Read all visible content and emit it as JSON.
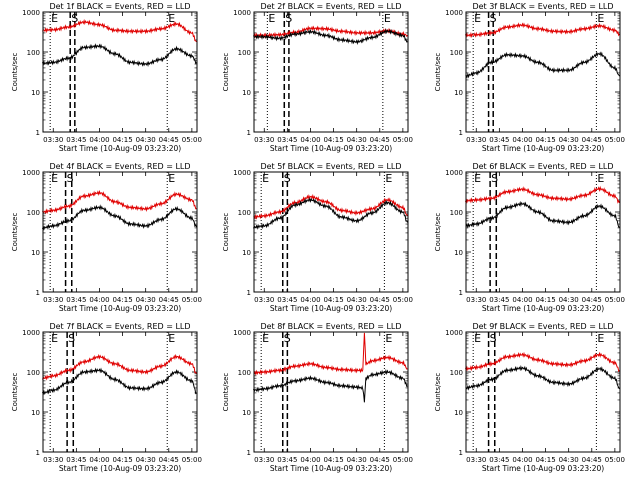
{
  "colors": {
    "events": "#000000",
    "lld": "#e00000",
    "axes": "#000000"
  },
  "shared": {
    "xlabel": "Start Time (10-Aug-09 03:23:20)",
    "ylabel": "Counts/sec",
    "x_ticks": [
      "03:30",
      "03:45",
      "04:00",
      "04:15",
      "04:30",
      "04:45",
      "05:00"
    ],
    "y_ticks": [
      "1",
      "10",
      "100",
      "1000"
    ]
  },
  "chart_data": [
    {
      "type": "line",
      "title": "Det 1f BLACK = Events, RED = LLD",
      "xlabel": "Start Time (10-Aug-09 03:23:20)",
      "ylabel": "Counts/sec",
      "xlim": [
        "03:23:20",
        "05:03:20"
      ],
      "ylim": [
        1,
        1000
      ],
      "yscale": "log",
      "markers": [
        {
          "label": "E",
          "time": "03:28",
          "style": "dotted"
        },
        {
          "label": "S",
          "time": "03:41",
          "style": "dashed"
        },
        {
          "label": "",
          "time": "03:44",
          "style": "dashed"
        },
        {
          "label": "E",
          "time": "04:44",
          "style": "dotted"
        }
      ],
      "series": [
        {
          "name": "LLD",
          "color": "#e00000",
          "x": [
            "03:23",
            "03:30",
            "03:40",
            "03:50",
            "04:00",
            "04:10",
            "04:20",
            "04:30",
            "04:40",
            "04:50",
            "05:00",
            "05:03"
          ],
          "y": [
            350,
            360,
            420,
            560,
            480,
            350,
            330,
            330,
            380,
            500,
            300,
            180
          ]
        },
        {
          "name": "Events",
          "color": "#000000",
          "x": [
            "03:23",
            "03:30",
            "03:40",
            "03:50",
            "04:00",
            "04:10",
            "04:20",
            "04:30",
            "04:40",
            "04:50",
            "05:00",
            "05:03"
          ],
          "y": [
            52,
            55,
            70,
            130,
            140,
            90,
            55,
            50,
            65,
            120,
            80,
            55
          ]
        }
      ]
    },
    {
      "type": "line",
      "title": "Det 2f BLACK = Events, RED = LLD",
      "xlabel": "Start Time (10-Aug-09 03:23:20)",
      "ylabel": "Counts/sec",
      "xlim": [
        "03:23:20",
        "05:03:20"
      ],
      "ylim": [
        1,
        1000
      ],
      "yscale": "log",
      "markers": [
        {
          "label": "E",
          "time": "03:32",
          "style": "dotted"
        },
        {
          "label": "S",
          "time": "03:43",
          "style": "dashed"
        },
        {
          "label": "",
          "time": "03:46",
          "style": "dashed"
        },
        {
          "label": "E",
          "time": "04:47",
          "style": "dotted"
        }
      ],
      "series": [
        {
          "name": "LLD",
          "color": "#e00000",
          "x": [
            "03:23",
            "03:30",
            "03:40",
            "03:50",
            "04:00",
            "04:10",
            "04:20",
            "04:30",
            "04:40",
            "04:50",
            "05:00",
            "05:03"
          ],
          "y": [
            260,
            260,
            270,
            310,
            390,
            380,
            330,
            300,
            300,
            340,
            280,
            260
          ]
        },
        {
          "name": "Events",
          "color": "#000000",
          "x": [
            "03:23",
            "03:30",
            "03:40",
            "03:50",
            "04:00",
            "04:10",
            "04:20",
            "04:30",
            "04:40",
            "04:50",
            "05:00",
            "05:03"
          ],
          "y": [
            240,
            240,
            220,
            280,
            320,
            260,
            200,
            180,
            230,
            330,
            260,
            180
          ]
        }
      ]
    },
    {
      "type": "line",
      "title": "Det 3f BLACK = Events, RED = LLD",
      "xlabel": "Start Time (10-Aug-09 03:23:20)",
      "ylabel": "Counts/sec",
      "xlim": [
        "03:23:20",
        "05:03:20"
      ],
      "ylim": [
        1,
        1000
      ],
      "yscale": "log",
      "markers": [
        {
          "label": "E",
          "time": "03:28",
          "style": "dotted"
        },
        {
          "label": "S",
          "time": "03:38",
          "style": "dashed"
        },
        {
          "label": "",
          "time": "03:41",
          "style": "dashed"
        },
        {
          "label": "E",
          "time": "04:48",
          "style": "dotted"
        }
      ],
      "series": [
        {
          "name": "LLD",
          "color": "#e00000",
          "x": [
            "03:23",
            "03:30",
            "03:40",
            "03:50",
            "04:00",
            "04:10",
            "04:20",
            "04:30",
            "04:40",
            "04:50",
            "05:00",
            "05:03"
          ],
          "y": [
            260,
            270,
            300,
            420,
            470,
            380,
            330,
            320,
            380,
            450,
            350,
            280
          ]
        },
        {
          "name": "Events",
          "color": "#000000",
          "x": [
            "03:23",
            "03:30",
            "03:40",
            "03:50",
            "04:00",
            "04:10",
            "04:20",
            "04:30",
            "04:40",
            "04:50",
            "05:00",
            "05:03"
          ],
          "y": [
            25,
            30,
            55,
            85,
            80,
            55,
            35,
            35,
            55,
            90,
            40,
            25
          ]
        }
      ]
    },
    {
      "type": "line",
      "title": "Det 4f BLACK = Events, RED = LLD",
      "xlabel": "Start Time (10-Aug-09 03:23:20)",
      "ylabel": "Counts/sec",
      "xlim": [
        "03:23:20",
        "05:03:20"
      ],
      "ylim": [
        1,
        1000
      ],
      "yscale": "log",
      "markers": [
        {
          "label": "E",
          "time": "03:28",
          "style": "dotted"
        },
        {
          "label": "S",
          "time": "03:38",
          "style": "dashed"
        },
        {
          "label": "",
          "time": "03:42",
          "style": "dashed"
        },
        {
          "label": "E",
          "time": "04:44",
          "style": "dotted"
        }
      ],
      "series": [
        {
          "name": "LLD",
          "color": "#e00000",
          "x": [
            "03:23",
            "03:30",
            "03:40",
            "03:50",
            "04:00",
            "04:10",
            "04:20",
            "04:30",
            "04:40",
            "04:50",
            "05:00",
            "05:03"
          ],
          "y": [
            100,
            110,
            140,
            250,
            300,
            180,
            130,
            120,
            160,
            280,
            200,
            120
          ]
        },
        {
          "name": "Events",
          "color": "#000000",
          "x": [
            "03:23",
            "03:30",
            "03:40",
            "03:50",
            "04:00",
            "04:10",
            "04:20",
            "04:30",
            "04:40",
            "04:50",
            "05:00",
            "05:03"
          ],
          "y": [
            40,
            45,
            60,
            110,
            130,
            80,
            50,
            45,
            65,
            120,
            70,
            42
          ]
        }
      ]
    },
    {
      "type": "line",
      "title": "Det 5f BLACK = Events, RED = LLD",
      "xlabel": "Start Time (10-Aug-09 03:23:20)",
      "ylabel": "Counts/sec",
      "xlim": [
        "03:23:20",
        "05:03:20"
      ],
      "ylim": [
        1,
        1000
      ],
      "yscale": "log",
      "markers": [
        {
          "label": "E",
          "time": "03:28",
          "style": "dotted"
        },
        {
          "label": "S",
          "time": "03:42",
          "style": "dashed"
        },
        {
          "label": "",
          "time": "03:45",
          "style": "dashed"
        },
        {
          "label": "E",
          "time": "04:48",
          "style": "dotted"
        }
      ],
      "series": [
        {
          "name": "LLD",
          "color": "#e00000",
          "x": [
            "03:23",
            "03:30",
            "03:40",
            "03:50",
            "04:00",
            "04:10",
            "04:20",
            "04:30",
            "04:40",
            "04:50",
            "05:00",
            "05:03"
          ],
          "y": [
            75,
            80,
            100,
            170,
            240,
            180,
            110,
            95,
            120,
            200,
            130,
            80
          ]
        },
        {
          "name": "Events",
          "color": "#000000",
          "x": [
            "03:23",
            "03:30",
            "03:40",
            "03:50",
            "04:00",
            "04:10",
            "04:20",
            "04:30",
            "04:40",
            "04:50",
            "05:00",
            "05:03"
          ],
          "y": [
            42,
            45,
            70,
            150,
            200,
            140,
            75,
            60,
            95,
            170,
            100,
            55
          ]
        }
      ]
    },
    {
      "type": "line",
      "title": "Det 6f BLACK = Events, RED = LLD",
      "xlabel": "Start Time (10-Aug-09 03:23:20)",
      "ylabel": "Counts/sec",
      "xlim": [
        "03:23:20",
        "05:03:20"
      ],
      "ylim": [
        1,
        1000
      ],
      "yscale": "log",
      "markers": [
        {
          "label": "E",
          "time": "03:28",
          "style": "dotted"
        },
        {
          "label": "S",
          "time": "03:39",
          "style": "dashed"
        },
        {
          "label": "",
          "time": "03:43",
          "style": "dashed"
        },
        {
          "label": "E",
          "time": "04:48",
          "style": "dotted"
        }
      ],
      "series": [
        {
          "name": "LLD",
          "color": "#e00000",
          "x": [
            "03:23",
            "03:30",
            "03:40",
            "03:50",
            "04:00",
            "04:10",
            "04:20",
            "04:30",
            "04:40",
            "04:50",
            "05:00",
            "05:03"
          ],
          "y": [
            190,
            200,
            220,
            320,
            370,
            270,
            220,
            210,
            260,
            380,
            250,
            170
          ]
        },
        {
          "name": "Events",
          "color": "#000000",
          "x": [
            "03:23",
            "03:30",
            "03:40",
            "03:50",
            "04:00",
            "04:10",
            "04:20",
            "04:30",
            "04:40",
            "04:50",
            "05:00",
            "05:03"
          ],
          "y": [
            45,
            50,
            70,
            130,
            160,
            100,
            60,
            55,
            80,
            140,
            80,
            42
          ]
        }
      ]
    },
    {
      "type": "line",
      "title": "Det 7f BLACK = Events, RED = LLD",
      "xlabel": "Start Time (10-Aug-09 03:23:20)",
      "ylabel": "Counts/sec",
      "xlim": [
        "03:23:20",
        "05:03:20"
      ],
      "ylim": [
        1,
        1000
      ],
      "yscale": "log",
      "markers": [
        {
          "label": "E",
          "time": "03:28",
          "style": "dotted"
        },
        {
          "label": "S",
          "time": "03:39",
          "style": "dashed"
        },
        {
          "label": "",
          "time": "03:43",
          "style": "dashed"
        },
        {
          "label": "E",
          "time": "04:44",
          "style": "dotted"
        }
      ],
      "series": [
        {
          "name": "LLD",
          "color": "#e00000",
          "x": [
            "03:23",
            "03:30",
            "03:40",
            "03:50",
            "04:00",
            "04:10",
            "04:20",
            "04:30",
            "04:40",
            "04:50",
            "05:00",
            "05:03"
          ],
          "y": [
            70,
            80,
            110,
            180,
            240,
            160,
            110,
            100,
            140,
            240,
            160,
            90
          ]
        },
        {
          "name": "Events",
          "color": "#000000",
          "x": [
            "03:23",
            "03:30",
            "03:40",
            "03:50",
            "04:00",
            "04:10",
            "04:20",
            "04:30",
            "04:40",
            "04:50",
            "05:00",
            "05:03"
          ],
          "y": [
            30,
            35,
            55,
            100,
            110,
            65,
            40,
            38,
            55,
            100,
            60,
            30
          ]
        }
      ]
    },
    {
      "type": "line",
      "title": "Det 8f BLACK = Events, RED = LLD",
      "xlabel": "Start Time (10-Aug-09 03:23:20)",
      "ylabel": "Counts/sec",
      "xlim": [
        "03:23:20",
        "05:03:20"
      ],
      "ylim": [
        1,
        1000
      ],
      "yscale": "log",
      "markers": [
        {
          "label": "E",
          "time": "03:28",
          "style": "dotted"
        },
        {
          "label": "S",
          "time": "03:42",
          "style": "dashed"
        },
        {
          "label": "",
          "time": "03:45",
          "style": "dashed"
        },
        {
          "label": "E",
          "time": "04:48",
          "style": "dotted"
        }
      ],
      "series": [
        {
          "name": "LLD",
          "color": "#e00000",
          "x": [
            "03:23",
            "03:30",
            "03:40",
            "03:50",
            "04:00",
            "04:10",
            "04:20",
            "04:30",
            "04:34",
            "04:35",
            "04:36",
            "04:40",
            "04:50",
            "05:00",
            "05:03"
          ],
          "y": [
            95,
            100,
            110,
            140,
            160,
            130,
            115,
            110,
            110,
            1000,
            160,
            190,
            230,
            170,
            120
          ]
        },
        {
          "name": "Events",
          "color": "#000000",
          "x": [
            "03:23",
            "03:30",
            "03:40",
            "03:50",
            "04:00",
            "04:10",
            "04:20",
            "04:30",
            "04:34",
            "04:35",
            "04:36",
            "04:40",
            "04:50",
            "05:00",
            "05:03"
          ],
          "y": [
            35,
            38,
            45,
            60,
            70,
            55,
            45,
            42,
            40,
            18,
            70,
            85,
            100,
            70,
            45
          ]
        }
      ]
    },
    {
      "type": "line",
      "title": "Det 9f BLACK = Events, RED = LLD",
      "xlabel": "Start Time (10-Aug-09 03:23:20)",
      "ylabel": "Counts/sec",
      "xlim": [
        "03:23:20",
        "05:03:20"
      ],
      "ylim": [
        1,
        1000
      ],
      "yscale": "log",
      "markers": [
        {
          "label": "E",
          "time": "03:28",
          "style": "dotted"
        },
        {
          "label": "S",
          "time": "03:38",
          "style": "dashed"
        },
        {
          "label": "",
          "time": "03:42",
          "style": "dashed"
        },
        {
          "label": "E",
          "time": "04:48",
          "style": "dotted"
        }
      ],
      "series": [
        {
          "name": "LLD",
          "color": "#e00000",
          "x": [
            "03:23",
            "03:30",
            "03:40",
            "03:50",
            "04:00",
            "04:10",
            "04:20",
            "04:30",
            "04:40",
            "04:50",
            "05:00",
            "05:03"
          ],
          "y": [
            120,
            130,
            160,
            240,
            270,
            200,
            160,
            150,
            190,
            270,
            170,
            110
          ]
        },
        {
          "name": "Events",
          "color": "#000000",
          "x": [
            "03:23",
            "03:30",
            "03:40",
            "03:50",
            "04:00",
            "04:10",
            "04:20",
            "04:30",
            "04:40",
            "04:50",
            "05:00",
            "05:03"
          ],
          "y": [
            40,
            45,
            65,
            110,
            125,
            80,
            55,
            50,
            70,
            120,
            70,
            38
          ]
        }
      ]
    }
  ]
}
